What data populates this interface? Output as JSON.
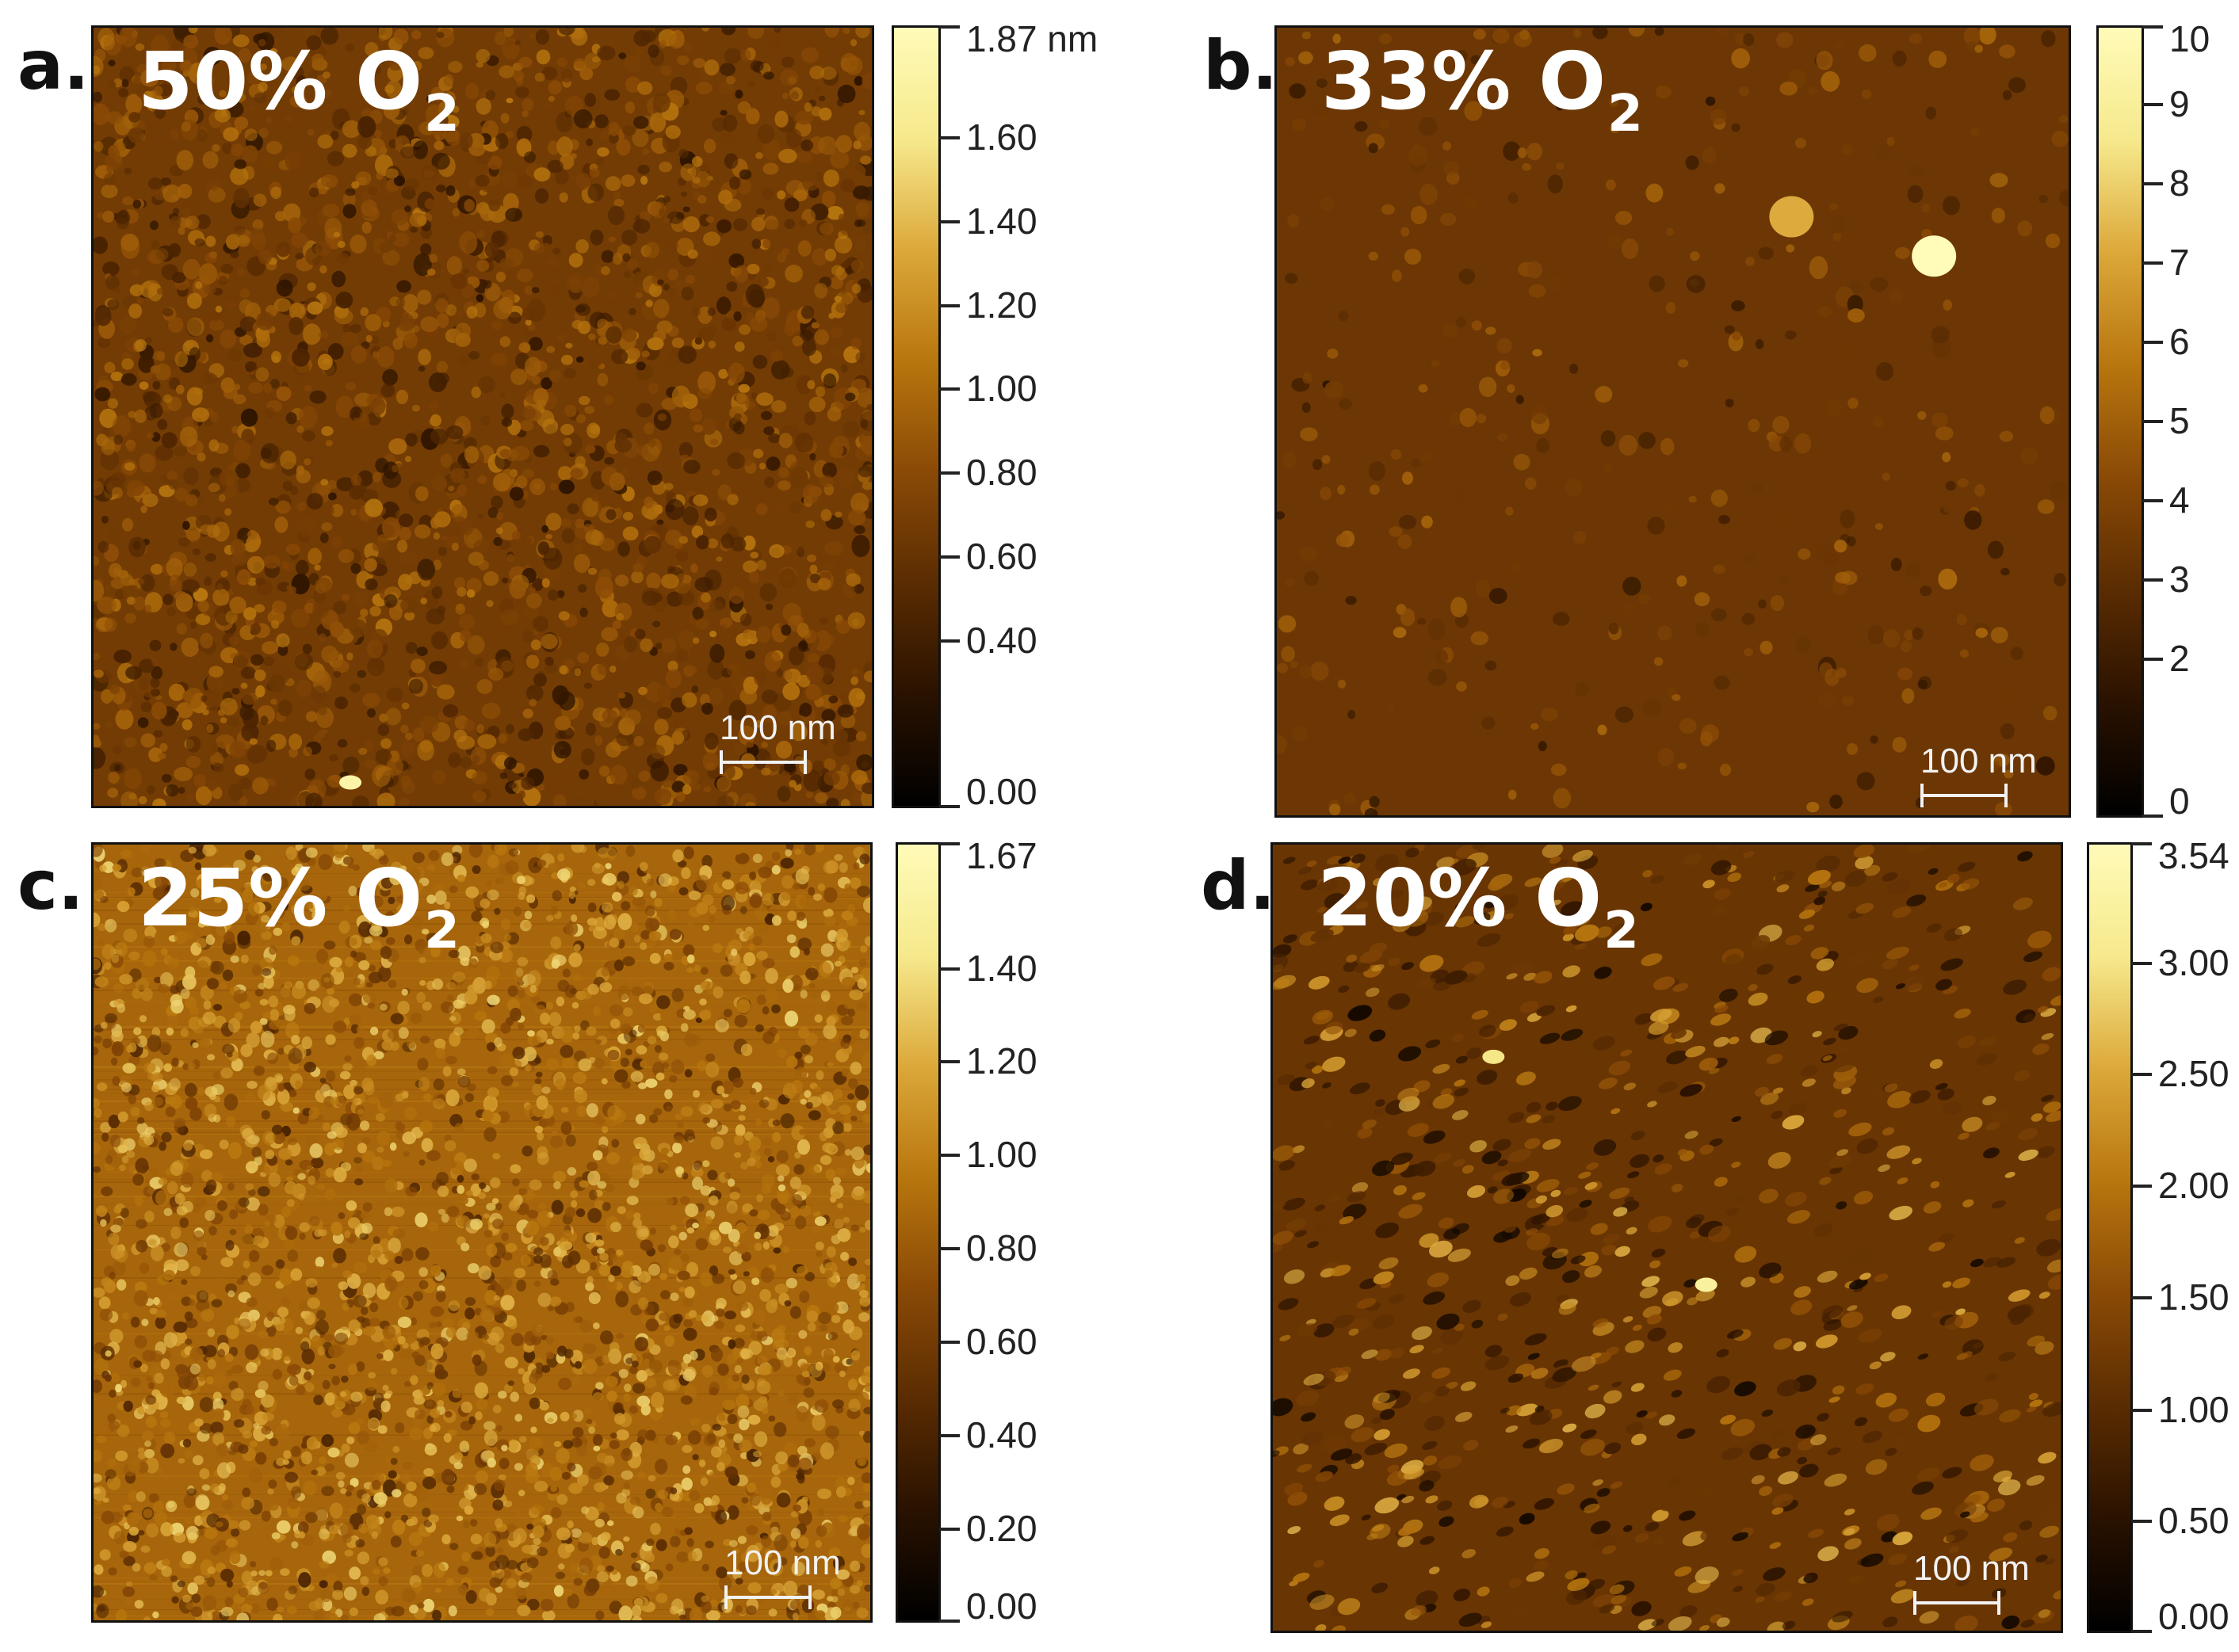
{
  "colormap": {
    "stops": [
      "#000000",
      "#2a1200",
      "#5a2c02",
      "#8a4a06",
      "#b8760e",
      "#dca83a",
      "#f6e98c",
      "#fffbb8"
    ]
  },
  "panels": [
    {
      "letter": "a.",
      "o2_percent": "50% O",
      "o2_subscript": "2",
      "scalebar_label": "100 nm",
      "mean_level": 0.36,
      "colorbar_ticks": [
        {
          "label": "1.87 nm",
          "fraction": 1.0
        },
        {
          "label": "1.60",
          "fraction": 0.856
        },
        {
          "label": "1.40",
          "fraction": 0.749
        },
        {
          "label": "1.20",
          "fraction": 0.642
        },
        {
          "label": "1.00",
          "fraction": 0.535
        },
        {
          "label": "0.80",
          "fraction": 0.428
        },
        {
          "label": "0.60",
          "fraction": 0.321
        },
        {
          "label": "0.40",
          "fraction": 0.214
        },
        {
          "label": "0.00",
          "fraction": 0.0
        }
      ]
    },
    {
      "letter": "b.",
      "o2_percent": "33% O",
      "o2_subscript": "2",
      "scalebar_label": "100 nm",
      "mean_level": 0.34,
      "colorbar_ticks": [
        {
          "label": "10",
          "fraction": 1.0
        },
        {
          "label": "9",
          "fraction": 0.9
        },
        {
          "label": "8",
          "fraction": 0.8
        },
        {
          "label": "7",
          "fraction": 0.7
        },
        {
          "label": "6",
          "fraction": 0.6
        },
        {
          "label": "5",
          "fraction": 0.5
        },
        {
          "label": "4",
          "fraction": 0.4
        },
        {
          "label": "3",
          "fraction": 0.3
        },
        {
          "label": "2",
          "fraction": 0.2
        },
        {
          "label": "0",
          "fraction": 0.0
        }
      ]
    },
    {
      "letter": "c.",
      "o2_percent": "25% O",
      "o2_subscript": "2",
      "scalebar_label": "100 nm",
      "mean_level": 0.52,
      "colorbar_ticks": [
        {
          "label": "1.67",
          "fraction": 1.0
        },
        {
          "label": "1.40",
          "fraction": 0.838
        },
        {
          "label": "1.20",
          "fraction": 0.719
        },
        {
          "label": "1.00",
          "fraction": 0.599
        },
        {
          "label": "0.80",
          "fraction": 0.479
        },
        {
          "label": "0.60",
          "fraction": 0.359
        },
        {
          "label": "0.40",
          "fraction": 0.24
        },
        {
          "label": "0.20",
          "fraction": 0.12
        },
        {
          "label": "0.00",
          "fraction": 0.0
        }
      ]
    },
    {
      "letter": "d.",
      "o2_percent": "20% O",
      "o2_subscript": "2",
      "scalebar_label": "100 nm",
      "mean_level": 0.33,
      "colorbar_ticks": [
        {
          "label": "3.54",
          "fraction": 1.0
        },
        {
          "label": "3.00",
          "fraction": 0.847
        },
        {
          "label": "2.50",
          "fraction": 0.706
        },
        {
          "label": "2.00",
          "fraction": 0.565
        },
        {
          "label": "1.50",
          "fraction": 0.424
        },
        {
          "label": "1.00",
          "fraction": 0.282
        },
        {
          "label": "0.50",
          "fraction": 0.141
        },
        {
          "label": "0.00",
          "fraction": 0.0
        }
      ]
    }
  ]
}
